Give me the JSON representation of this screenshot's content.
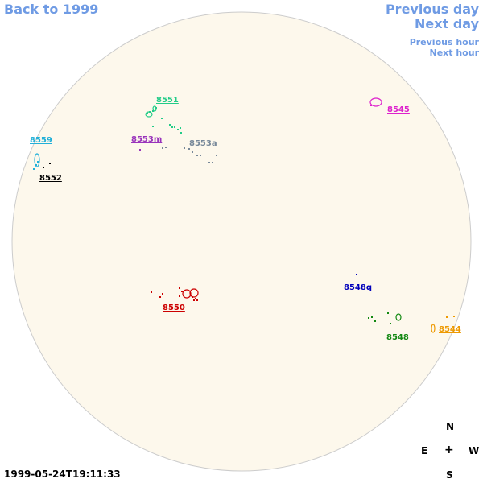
{
  "nav": {
    "back": "Back to 1999",
    "previous_day": "Previous day",
    "next_day": "Next day",
    "previous_hour": "Previous hour",
    "next_hour": "Next hour"
  },
  "timestamp": "1999-05-24T19:11:33",
  "compass": {
    "north": "N",
    "east": "E",
    "center": "+",
    "west": "W",
    "south": "S"
  },
  "colors": {
    "link": "#6f9be4",
    "disk_fill": "#fdf8ec",
    "disk_stroke": "#cccccc"
  },
  "active_regions": [
    {
      "id": "8551",
      "color": "#22cc88"
    },
    {
      "id": "8559",
      "color": "#22b0d8"
    },
    {
      "id": "8553m",
      "color": "#9933bb"
    },
    {
      "id": "8553a",
      "color": "#778899"
    },
    {
      "id": "8552",
      "color": "#000000"
    },
    {
      "id": "8545",
      "color": "#dd22cc"
    },
    {
      "id": "8550",
      "color": "#cc0000"
    },
    {
      "id": "8548q",
      "color": "#0000bb"
    },
    {
      "id": "8548",
      "color": "#118811"
    },
    {
      "id": "8544",
      "color": "#ee9900"
    }
  ]
}
